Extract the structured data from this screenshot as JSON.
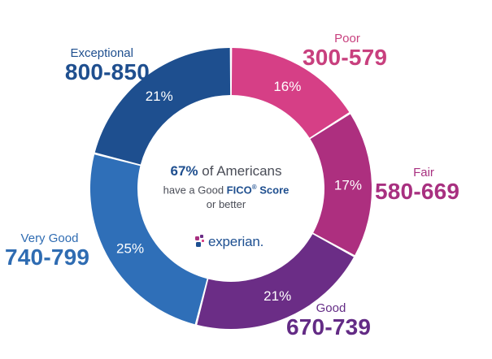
{
  "chart_data": {
    "type": "pie",
    "donut": true,
    "categories": [
      {
        "name": "Exceptional",
        "range": "800-850",
        "value": 21,
        "label": "21%",
        "color": "#1e4f8f",
        "text_color": "#1f4f8f"
      },
      {
        "name": "Poor",
        "range": "300-579",
        "value": 16,
        "label": "16%",
        "color": "#d63f86",
        "text_color": "#c8407e"
      },
      {
        "name": "Fair",
        "range": "580-669",
        "value": 17,
        "label": "17%",
        "color": "#ad2f7f",
        "text_color": "#a83080"
      },
      {
        "name": "Good",
        "range": "670-739",
        "value": 21,
        "label": "21%",
        "color": "#6b2d86",
        "text_color": "#632b85"
      },
      {
        "name": "Very Good",
        "range": "740-799",
        "value": 25,
        "label": "25%",
        "color": "#2f6fb8",
        "text_color": "#2f6cb2"
      }
    ],
    "center": {
      "percent": "67%",
      "line1_rest": " of Americans",
      "line2_prefix": "have a Good ",
      "line2_fico": "FICO",
      "line2_reg": "®",
      "line2_suffix": " Score",
      "line3": "or better"
    }
  },
  "logo": {
    "text": "experian.",
    "dot_colors": [
      "#a83080",
      "#6b2d86",
      "#1d4f91",
      "#d63f86"
    ]
  }
}
